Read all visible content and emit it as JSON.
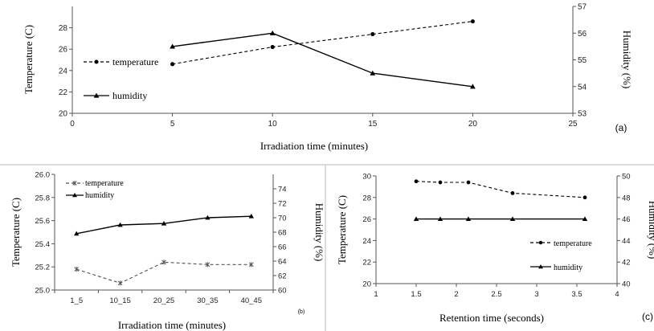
{
  "chart_data": [
    {
      "id": "a",
      "type": "line",
      "panel_label": "(a)",
      "xlabel": "Irradiation time (minutes)",
      "ylabel": "Temperature (C)",
      "y2label": "Humidity (%)",
      "xlim": [
        0,
        25
      ],
      "xticks": [
        0,
        5,
        10,
        15,
        20,
        25
      ],
      "ylim": [
        20,
        30
      ],
      "yticks": [
        20,
        22,
        24,
        26,
        28
      ],
      "y2lim": [
        53,
        57
      ],
      "y2ticks": [
        53,
        54,
        55,
        56,
        57
      ],
      "x": [
        5,
        10,
        15,
        20
      ],
      "series": [
        {
          "name": "temperature",
          "axis": "left",
          "style": "dashed",
          "marker": "circle",
          "color": "#000000",
          "values": [
            24.6,
            26.2,
            27.4,
            28.6
          ]
        },
        {
          "name": "humidity",
          "axis": "right",
          "style": "solid",
          "marker": "triangle",
          "color": "#000000",
          "values": [
            55.5,
            56.0,
            54.5,
            54.0
          ]
        }
      ],
      "legend": "left"
    },
    {
      "id": "b",
      "type": "line",
      "panel_label": "(b)",
      "xlabel": "Irradiation time (minutes)",
      "ylabel": "Temperature (C)",
      "y2label": "Humidity (%)",
      "categories": [
        "1_5",
        "10_15",
        "20_25",
        "30_35",
        "40_45"
      ],
      "ylim": [
        25.0,
        26.0
      ],
      "yticks": [
        "25.0",
        "25.2",
        "25.4",
        "25.6",
        "25.8",
        "26.0"
      ],
      "y2lim": [
        60,
        76
      ],
      "y2ticks": [
        60,
        62,
        64,
        66,
        68,
        70,
        72,
        74
      ],
      "series": [
        {
          "name": "temperature",
          "axis": "left",
          "style": "dashed",
          "marker": "star",
          "color": "#555555",
          "values": [
            25.18,
            25.06,
            25.24,
            25.22,
            25.22
          ]
        },
        {
          "name": "humidity",
          "axis": "right",
          "style": "solid",
          "marker": "triangle",
          "color": "#000000",
          "values": [
            67.8,
            69.0,
            69.2,
            70.0,
            70.2
          ]
        }
      ],
      "legend": "top-left"
    },
    {
      "id": "c",
      "type": "line",
      "panel_label": "(c)",
      "xlabel": "Retention time (seconds)",
      "ylabel": "Temperature (C)",
      "y2label": "Humidity (%)",
      "xlim": [
        1,
        4
      ],
      "xticks": [
        "1",
        "1.5",
        "2",
        "2.5",
        "3",
        "3.5",
        "4"
      ],
      "ylim": [
        20,
        30
      ],
      "yticks": [
        20,
        22,
        24,
        26,
        28,
        30
      ],
      "y2lim": [
        40,
        50
      ],
      "y2ticks": [
        40,
        42,
        44,
        46,
        48,
        50
      ],
      "x": [
        1.5,
        1.8,
        2.15,
        2.7,
        3.6
      ],
      "series": [
        {
          "name": "temperature",
          "axis": "left",
          "style": "dashed",
          "marker": "circle",
          "color": "#000000",
          "values": [
            29.5,
            29.4,
            29.4,
            28.4,
            28.0
          ]
        },
        {
          "name": "humidity",
          "axis": "right",
          "style": "solid",
          "marker": "triangle",
          "color": "#000000",
          "values": [
            46,
            46,
            46,
            46,
            46
          ]
        }
      ],
      "legend": "bottom-right"
    }
  ]
}
